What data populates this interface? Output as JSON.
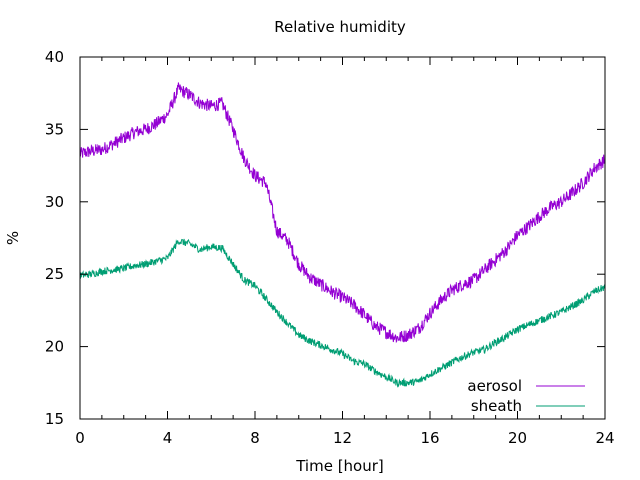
{
  "chart_data": {
    "type": "line",
    "title": "Relative humidity",
    "xlabel": "Time [hour]",
    "ylabel": "%",
    "xlim": [
      0,
      24
    ],
    "ylim": [
      15,
      40
    ],
    "xticks": [
      "0",
      "4",
      "8",
      "12",
      "16",
      "20",
      "24"
    ],
    "yticks": [
      "15",
      "20",
      "25",
      "30",
      "35",
      "40"
    ],
    "grid": false,
    "legend_position": "bottom-right",
    "x": [
      0,
      0.5,
      1,
      1.5,
      2,
      2.5,
      3,
      3.5,
      4,
      4.5,
      5,
      5.5,
      6,
      6.5,
      7,
      7.5,
      8,
      8.5,
      9,
      9.5,
      10,
      10.5,
      11,
      11.5,
      12,
      12.5,
      13,
      13.5,
      14,
      14.5,
      15,
      15.5,
      16,
      16.5,
      17,
      17.5,
      18,
      18.5,
      19,
      19.5,
      20,
      20.5,
      21,
      21.5,
      22,
      22.5,
      23,
      23.5,
      24
    ],
    "series": [
      {
        "name": "aerosol",
        "color": "#9400d3",
        "values": [
          33.3,
          33.5,
          33.6,
          34.0,
          34.4,
          34.8,
          35.0,
          35.4,
          36.0,
          37.8,
          37.4,
          36.8,
          36.6,
          36.8,
          35.0,
          33.0,
          31.8,
          31.3,
          28.0,
          27.3,
          25.7,
          24.8,
          24.3,
          23.8,
          23.4,
          22.9,
          22.2,
          21.4,
          21.0,
          20.6,
          20.8,
          21.3,
          22.3,
          23.2,
          23.9,
          24.3,
          24.6,
          25.3,
          26.0,
          26.7,
          27.7,
          28.3,
          29.0,
          29.6,
          30.0,
          30.6,
          31.3,
          32.3,
          32.9
        ]
      },
      {
        "name": "sheath",
        "color": "#009e73",
        "values": [
          24.9,
          25.0,
          25.2,
          25.3,
          25.4,
          25.6,
          25.7,
          25.9,
          26.1,
          27.3,
          27.1,
          26.7,
          26.9,
          26.8,
          25.7,
          24.6,
          24.2,
          23.3,
          22.4,
          21.6,
          20.8,
          20.4,
          20.1,
          19.8,
          19.5,
          19.0,
          18.8,
          18.3,
          17.9,
          17.5,
          17.5,
          17.6,
          18.1,
          18.5,
          18.9,
          19.3,
          19.6,
          19.8,
          20.3,
          20.7,
          21.2,
          21.5,
          21.8,
          22.1,
          22.4,
          22.8,
          23.2,
          23.8,
          24.1
        ]
      }
    ]
  }
}
